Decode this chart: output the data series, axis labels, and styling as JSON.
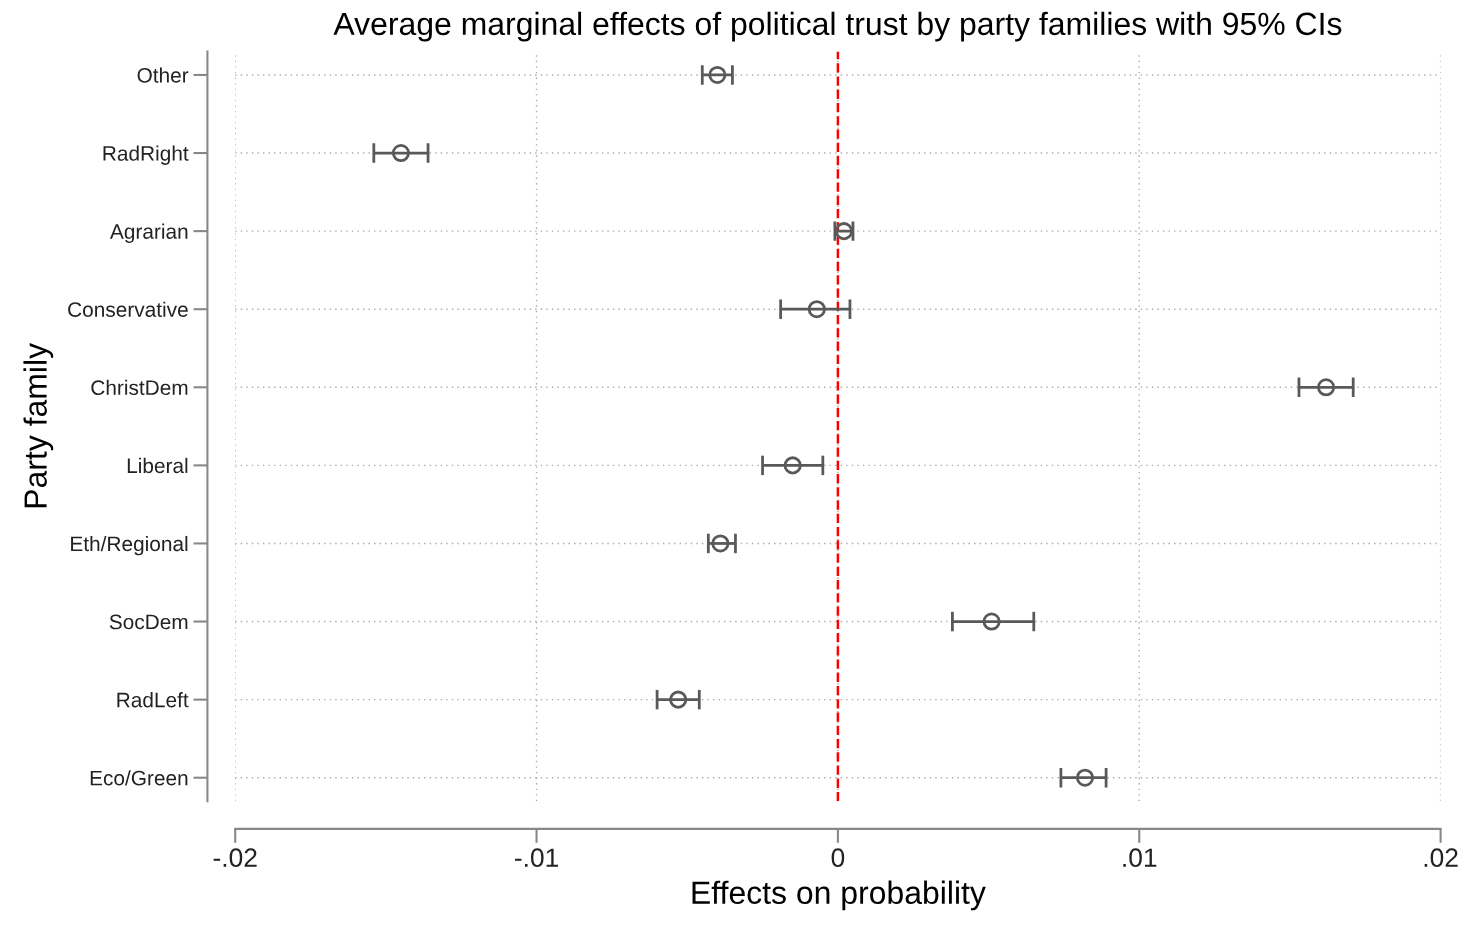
{
  "chart_data": {
    "type": "scatter",
    "orientation": "horizontal",
    "title": "Average marginal effects of political trust by party families with 95% CIs",
    "xlabel": "Effects on probability",
    "ylabel": "Party family",
    "categories": [
      "Other",
      "RadRight",
      "Agrarian",
      "Conservative",
      "ChristDem",
      "Liberal",
      "Eth/Regional",
      "SocDem",
      "RadLeft",
      "Eco/Green"
    ],
    "series": [
      {
        "color": "#595959",
        "values": [
          -0.004,
          -0.0145,
          0.0002,
          -0.0007,
          0.0162,
          -0.0015,
          -0.0039,
          0.0051,
          -0.0053,
          0.0082
        ],
        "errors": [
          [
            -0.0045,
            -0.0035
          ],
          [
            -0.0154,
            -0.0136
          ],
          [
            -0.0001,
            0.0005
          ],
          [
            -0.0019,
            0.0004
          ],
          [
            0.0153,
            0.0171
          ],
          [
            -0.0025,
            -0.0005
          ],
          [
            -0.0043,
            -0.0034
          ],
          [
            0.0038,
            0.0065
          ],
          [
            -0.006,
            -0.0046
          ],
          [
            0.0074,
            0.0089
          ]
        ]
      }
    ],
    "xlim": [
      -0.02,
      0.02
    ],
    "xticks": [
      {
        "value": -0.02,
        "label": "-.02"
      },
      {
        "value": -0.01,
        "label": "-.01"
      },
      0,
      {
        "value": 0.01,
        "label": ".01"
      },
      {
        "value": 0.02,
        "label": ".02"
      }
    ],
    "ref_lines": [
      {
        "axis": "x",
        "value": 0,
        "color": "#ff0000",
        "line_style": "dashed"
      }
    ],
    "grid": true,
    "marker": "circle",
    "legend": false
  }
}
